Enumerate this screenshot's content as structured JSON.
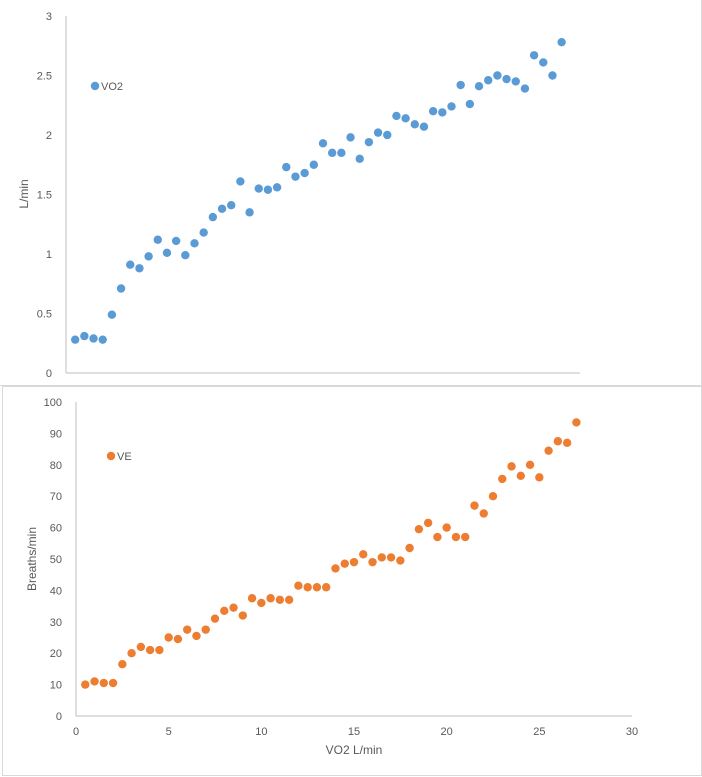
{
  "colors": {
    "vo2": "#5b9bd5",
    "ve": "#ed7d31",
    "axis": "#bfbfbf",
    "text": "#595959"
  },
  "chart_data": [
    {
      "type": "scatter",
      "title": "",
      "xlabel": "",
      "ylabel": "L/min",
      "ylim": [
        0,
        3
      ],
      "yticks": [
        "0",
        "0.5",
        "1",
        "1.5",
        "2",
        "2.5",
        "3"
      ],
      "xlim": [
        0,
        28
      ],
      "grid": false,
      "legend": "top-left",
      "series": [
        {
          "name": "VO2",
          "x": [
            0.5,
            1,
            1.5,
            2,
            2.5,
            3,
            3.5,
            4,
            4.5,
            5,
            5.5,
            6,
            6.5,
            7,
            7.5,
            8,
            8.5,
            9,
            9.5,
            10,
            10.5,
            11,
            11.5,
            12,
            12.5,
            13,
            13.5,
            14,
            14.5,
            15,
            15.5,
            16,
            16.5,
            17,
            17.5,
            18,
            18.5,
            19,
            19.5,
            20,
            20.5,
            21,
            21.5,
            22,
            22.5,
            23,
            23.5,
            24,
            24.5,
            25,
            25.5,
            26,
            26.5,
            27
          ],
          "y": [
            0.28,
            0.31,
            0.29,
            0.28,
            0.49,
            0.71,
            0.91,
            0.88,
            0.98,
            1.12,
            1.01,
            1.11,
            0.99,
            1.09,
            1.18,
            1.31,
            1.38,
            1.41,
            1.61,
            1.35,
            1.55,
            1.54,
            1.56,
            1.73,
            1.65,
            1.68,
            1.75,
            1.93,
            1.85,
            1.85,
            1.98,
            1.8,
            1.94,
            2.02,
            2.0,
            2.16,
            2.14,
            2.09,
            2.07,
            2.2,
            2.19,
            2.24,
            2.42,
            2.26,
            2.41,
            2.46,
            2.5,
            2.47,
            2.45,
            2.39,
            2.67,
            2.61,
            2.5,
            2.78
          ]
        }
      ]
    },
    {
      "type": "scatter",
      "title": "",
      "xlabel": "VO2 L/min",
      "ylabel": "Breaths/min",
      "xlim": [
        0,
        30
      ],
      "ylim": [
        0,
        100
      ],
      "xticks": [
        "0",
        "5",
        "10",
        "15",
        "20",
        "25",
        "30"
      ],
      "yticks": [
        "0",
        "10",
        "20",
        "30",
        "40",
        "50",
        "60",
        "70",
        "80",
        "90",
        "100"
      ],
      "grid": false,
      "legend": "top-left",
      "series": [
        {
          "name": "VE",
          "x": [
            0.5,
            1,
            1.5,
            2,
            2.5,
            3,
            3.5,
            4,
            4.5,
            5,
            5.5,
            6,
            6.5,
            7,
            7.5,
            8,
            8.5,
            9,
            9.5,
            10,
            10.5,
            11,
            11.5,
            12,
            12.5,
            13,
            13.5,
            14,
            14.5,
            15,
            15.5,
            16,
            16.5,
            17,
            17.5,
            18,
            18.5,
            19,
            19.5,
            20,
            20.5,
            21,
            21.5,
            22,
            22.5,
            23,
            23.5,
            24,
            24.5,
            25,
            25.5,
            26,
            26.5,
            27
          ],
          "y": [
            10,
            11,
            10.5,
            10.5,
            16.5,
            20,
            22,
            21,
            21,
            25,
            24.5,
            27.5,
            25.5,
            27.5,
            31,
            33.5,
            34.5,
            32,
            37.5,
            36,
            37.5,
            37,
            37,
            41.5,
            41,
            41,
            41,
            47,
            48.5,
            49,
            51.5,
            49,
            50.5,
            50.5,
            49.5,
            53.5,
            59.5,
            61.5,
            57,
            60,
            57,
            57,
            67,
            64.5,
            70,
            75.5,
            79.5,
            76.5,
            80,
            76,
            84.5,
            87.5,
            87,
            93.5
          ]
        }
      ]
    }
  ]
}
